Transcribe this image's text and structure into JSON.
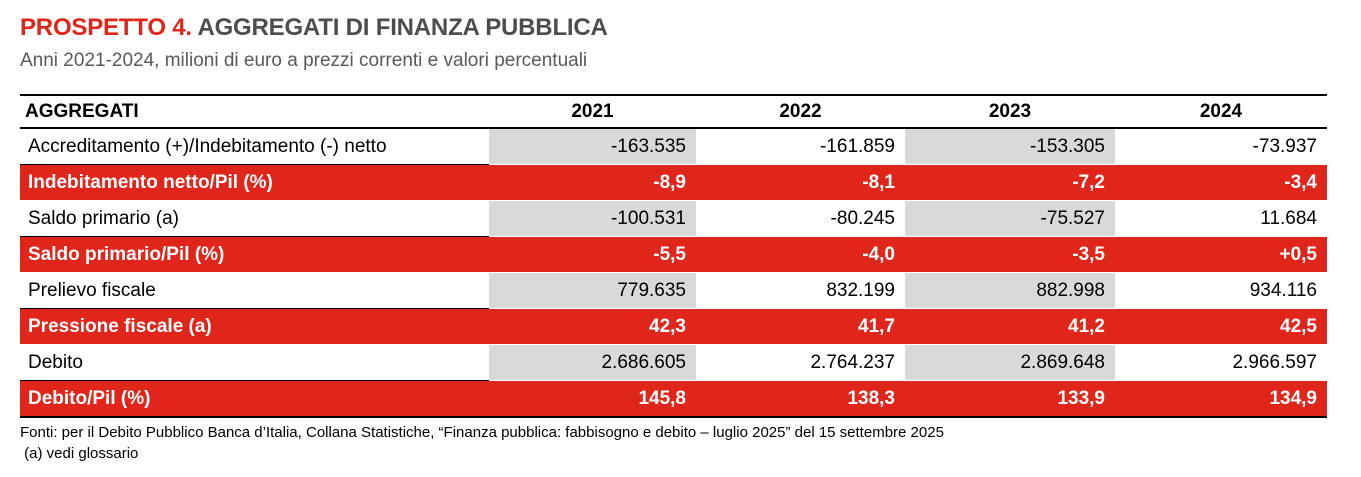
{
  "header": {
    "title_prefix": "PROSPETTO 4.",
    "title_main": "AGGREGATI DI FINANZA PUBBLICA",
    "subtitle": "Anni 2021-2024, milioni di euro a prezzi correnti e valori percentuali"
  },
  "table": {
    "columns": [
      "AGGREGATI",
      "2021",
      "2022",
      "2023",
      "2024"
    ],
    "rows": [
      {
        "label": "Accreditamento (+)/Indebitamento (-) netto",
        "values": [
          "-163.535",
          "-161.859",
          "-153.305",
          "-73.937"
        ],
        "highlight": false
      },
      {
        "label": "Indebitamento netto/Pil (%)",
        "values": [
          "-8,9",
          "-8,1",
          "-7,2",
          "-3,4"
        ],
        "highlight": true
      },
      {
        "label": "Saldo primario (a)",
        "values": [
          "-100.531",
          "-80.245",
          "-75.527",
          "11.684"
        ],
        "highlight": false
      },
      {
        "label": "Saldo primario/Pil (%)",
        "values": [
          "-5,5",
          "-4,0",
          "-3,5",
          "+0,5"
        ],
        "highlight": true
      },
      {
        "label": "Prelievo fiscale",
        "values": [
          "779.635",
          "832.199",
          "882.998",
          "934.116"
        ],
        "highlight": false
      },
      {
        "label": "Pressione fiscale (a)",
        "values": [
          "42,3",
          "41,7",
          "41,2",
          "42,5"
        ],
        "highlight": true
      },
      {
        "label": "Debito",
        "values": [
          "2.686.605",
          "2.764.237",
          "2.869.648",
          "2.966.597"
        ],
        "highlight": false
      },
      {
        "label": "Debito/Pil (%)",
        "values": [
          "145,8",
          "138,3",
          "133,9",
          "134,9"
        ],
        "highlight": true
      }
    ]
  },
  "notes": {
    "source": "Fonti: per il Debito Pubblico Banca d’Italia, Collana Statistiche, “Finanza pubblica: fabbisogno e debito – luglio 2025” del 15 settembre 2025",
    "footnote": " (a) vedi glossario"
  },
  "colors": {
    "accent_red": "#e0251b",
    "shade_gray": "#d9d9d9",
    "subtitle_gray": "#595959"
  }
}
